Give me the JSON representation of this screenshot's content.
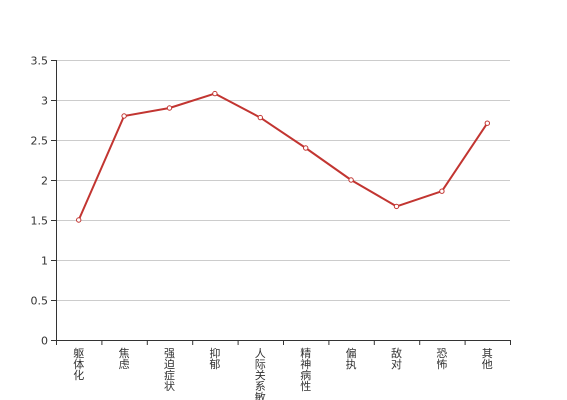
{
  "chart_data": {
    "type": "line",
    "categories": [
      "躯体化",
      "焦虑",
      "强迫症状",
      "抑郁",
      "人际关系敏感",
      "精神病性",
      "偏执",
      "敌对",
      "恐怖",
      "其他"
    ],
    "series": [
      {
        "values": [
          1.5,
          2.8,
          2.9,
          3.08,
          2.78,
          2.4,
          2.0,
          1.67,
          1.86,
          2.71
        ]
      }
    ],
    "yticks": [
      "0",
      "0.5",
      "1",
      "1.5",
      "2",
      "2.5",
      "3",
      "3.5"
    ],
    "ylim": [
      0,
      3.5
    ],
    "grid": true,
    "colors": {
      "line": "#c23531",
      "grid": "#cccccc",
      "axis": "#333333"
    }
  }
}
